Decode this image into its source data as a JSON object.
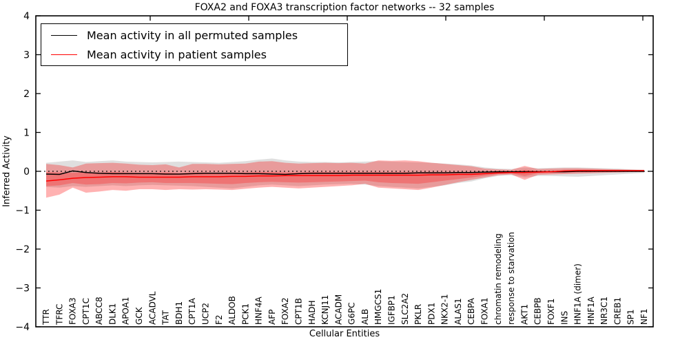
{
  "chart_data": {
    "type": "line",
    "title": "FOXA2 and FOXA3 transcription factor networks -- 32 samples",
    "xlabel": "Cellular Entities",
    "ylabel": "Inferred Activity",
    "ylim": [
      -4,
      4
    ],
    "yticks": [
      -4,
      -3,
      -2,
      -1,
      0,
      1,
      2,
      3,
      4
    ],
    "ytick_labels": [
      "−4",
      "−3",
      "−2",
      "−1",
      "0",
      "1",
      "2",
      "3",
      "4"
    ],
    "grid": false,
    "legend_position": "upper left",
    "zero_line": {
      "style": "dotted",
      "color": "#000000",
      "y": 0
    },
    "categories": [
      "TTR",
      "TFRC",
      "FOXA3",
      "CPT1C",
      "ABCC8",
      "DLK1",
      "APOA1",
      "GCK",
      "ACADVL",
      "TAT",
      "BDH1",
      "CPT1A",
      "UCP2",
      "F2",
      "ALDOB",
      "PCK1",
      "HNF4A",
      "AFP",
      "FOXA2",
      "CPT1B",
      "HADH",
      "KCNJ11",
      "ACADM",
      "G6PC",
      "ALB",
      "HMGCS1",
      "IGFBP1",
      "SLC2A2",
      "PKLR",
      "PDX1",
      "NKX2-1",
      "ALAS1",
      "CEBPA",
      "FOXA1",
      "chromatin remodeling",
      "response to starvation",
      "AKT1",
      "CEBPB",
      "FOXF1",
      "INS",
      "HNF1A (dimer)",
      "HNF1A",
      "NR3C1",
      "CREB1",
      "SP1",
      "NF1"
    ],
    "series": [
      {
        "name": "Mean activity in all permuted samples",
        "color": "#000000",
        "values": [
          -0.07,
          -0.08,
          0.01,
          -0.03,
          -0.05,
          -0.06,
          -0.06,
          -0.06,
          -0.06,
          -0.07,
          -0.07,
          -0.06,
          -0.05,
          -0.05,
          -0.05,
          -0.06,
          -0.06,
          -0.07,
          -0.08,
          -0.06,
          -0.05,
          -0.05,
          -0.05,
          -0.05,
          -0.05,
          -0.05,
          -0.05,
          -0.05,
          -0.04,
          -0.04,
          -0.04,
          -0.03,
          -0.03,
          -0.02,
          -0.01,
          -0.01,
          -0.01,
          -0.01,
          -0.01,
          -0.01,
          0,
          0,
          0,
          0,
          0,
          0
        ]
      },
      {
        "name": "Mean activity in patient samples",
        "color": "#ff0000",
        "values": [
          -0.25,
          -0.22,
          -0.18,
          -0.16,
          -0.15,
          -0.14,
          -0.14,
          -0.15,
          -0.15,
          -0.15,
          -0.15,
          -0.14,
          -0.14,
          -0.14,
          -0.13,
          -0.13,
          -0.12,
          -0.12,
          -0.11,
          -0.11,
          -0.11,
          -0.11,
          -0.11,
          -0.1,
          -0.1,
          -0.1,
          -0.1,
          -0.1,
          -0.1,
          -0.09,
          -0.09,
          -0.08,
          -0.08,
          -0.06,
          -0.04,
          -0.03,
          -0.03,
          -0.02,
          -0.01,
          0.01,
          0.02,
          0.02,
          0.02,
          0.02,
          0.02,
          0.02
        ]
      }
    ],
    "bands": [
      {
        "name": "permuted-spread",
        "color": "#808080",
        "opacity": 0.25,
        "upper": [
          0.22,
          0.25,
          0.28,
          0.24,
          0.26,
          0.28,
          0.25,
          0.24,
          0.23,
          0.24,
          0.25,
          0.24,
          0.23,
          0.22,
          0.24,
          0.26,
          0.3,
          0.33,
          0.28,
          0.25,
          0.24,
          0.24,
          0.23,
          0.24,
          0.25,
          0.26,
          0.25,
          0.24,
          0.23,
          0.22,
          0.2,
          0.18,
          0.15,
          0.1,
          0.07,
          0.06,
          0.1,
          0.08,
          0.09,
          0.1,
          0.1,
          0.09,
          0.08,
          0.07,
          0.05,
          0.04
        ],
        "lower": [
          -0.4,
          -0.42,
          -0.38,
          -0.4,
          -0.38,
          -0.36,
          -0.38,
          -0.36,
          -0.35,
          -0.36,
          -0.37,
          -0.38,
          -0.4,
          -0.42,
          -0.44,
          -0.4,
          -0.36,
          -0.34,
          -0.36,
          -0.38,
          -0.36,
          -0.34,
          -0.33,
          -0.32,
          -0.34,
          -0.38,
          -0.4,
          -0.42,
          -0.44,
          -0.4,
          -0.36,
          -0.3,
          -0.26,
          -0.18,
          -0.12,
          -0.1,
          -0.16,
          -0.12,
          -0.12,
          -0.13,
          -0.14,
          -0.12,
          -0.1,
          -0.08,
          -0.06,
          -0.04
        ]
      },
      {
        "name": "patient-spread-outer",
        "color": "#ff0000",
        "opacity": 0.3,
        "upper": [
          0.19,
          0.16,
          0.1,
          0.2,
          0.21,
          0.22,
          0.2,
          0.17,
          0.16,
          0.18,
          0.1,
          0.19,
          0.19,
          0.18,
          0.19,
          0.2,
          0.25,
          0.26,
          0.22,
          0.2,
          0.21,
          0.22,
          0.21,
          0.22,
          0.2,
          0.28,
          0.27,
          0.28,
          0.26,
          0.22,
          0.19,
          0.16,
          0.13,
          0.07,
          0.05,
          0.04,
          0.14,
          0.06,
          0.07,
          0.08,
          0.08,
          0.07,
          0.06,
          0.05,
          0.04,
          0.03
        ],
        "lower": [
          -0.68,
          -0.6,
          -0.42,
          -0.55,
          -0.52,
          -0.48,
          -0.5,
          -0.46,
          -0.46,
          -0.48,
          -0.46,
          -0.47,
          -0.46,
          -0.47,
          -0.48,
          -0.45,
          -0.42,
          -0.4,
          -0.42,
          -0.44,
          -0.42,
          -0.4,
          -0.38,
          -0.36,
          -0.32,
          -0.42,
          -0.44,
          -0.46,
          -0.48,
          -0.42,
          -0.35,
          -0.28,
          -0.22,
          -0.16,
          -0.1,
          -0.08,
          -0.22,
          -0.09,
          -0.08,
          -0.07,
          -0.06,
          -0.05,
          -0.04,
          -0.03,
          -0.02,
          -0.02
        ]
      },
      {
        "name": "patient-spread-inner",
        "color": "#ff0000",
        "opacity": 0.25,
        "upper": [
          -0.02,
          -0.03,
          -0.04,
          -0.02,
          -0.03,
          -0.02,
          -0.03,
          -0.04,
          -0.04,
          -0.03,
          -0.05,
          -0.03,
          -0.03,
          -0.04,
          -0.03,
          -0.03,
          -0.02,
          -0.02,
          -0.03,
          -0.03,
          -0.02,
          -0.02,
          -0.02,
          -0.02,
          -0.02,
          -0.02,
          -0.02,
          -0.02,
          -0.02,
          -0.02,
          -0.02,
          -0.02,
          -0.02,
          -0.01,
          -0.01,
          0,
          0.04,
          0.01,
          0.01,
          0.02,
          0.03,
          0.03,
          0.03,
          0.02,
          0.02,
          0.02
        ],
        "lower": [
          -0.38,
          -0.36,
          -0.3,
          -0.34,
          -0.33,
          -0.3,
          -0.31,
          -0.29,
          -0.28,
          -0.3,
          -0.3,
          -0.3,
          -0.31,
          -0.32,
          -0.33,
          -0.3,
          -0.28,
          -0.27,
          -0.28,
          -0.29,
          -0.28,
          -0.27,
          -0.26,
          -0.25,
          -0.24,
          -0.28,
          -0.3,
          -0.31,
          -0.32,
          -0.28,
          -0.24,
          -0.2,
          -0.16,
          -0.11,
          -0.07,
          -0.05,
          -0.12,
          -0.05,
          -0.04,
          -0.03,
          -0.02,
          -0.02,
          -0.01,
          -0.01,
          -0.01,
          -0.01
        ]
      }
    ]
  }
}
